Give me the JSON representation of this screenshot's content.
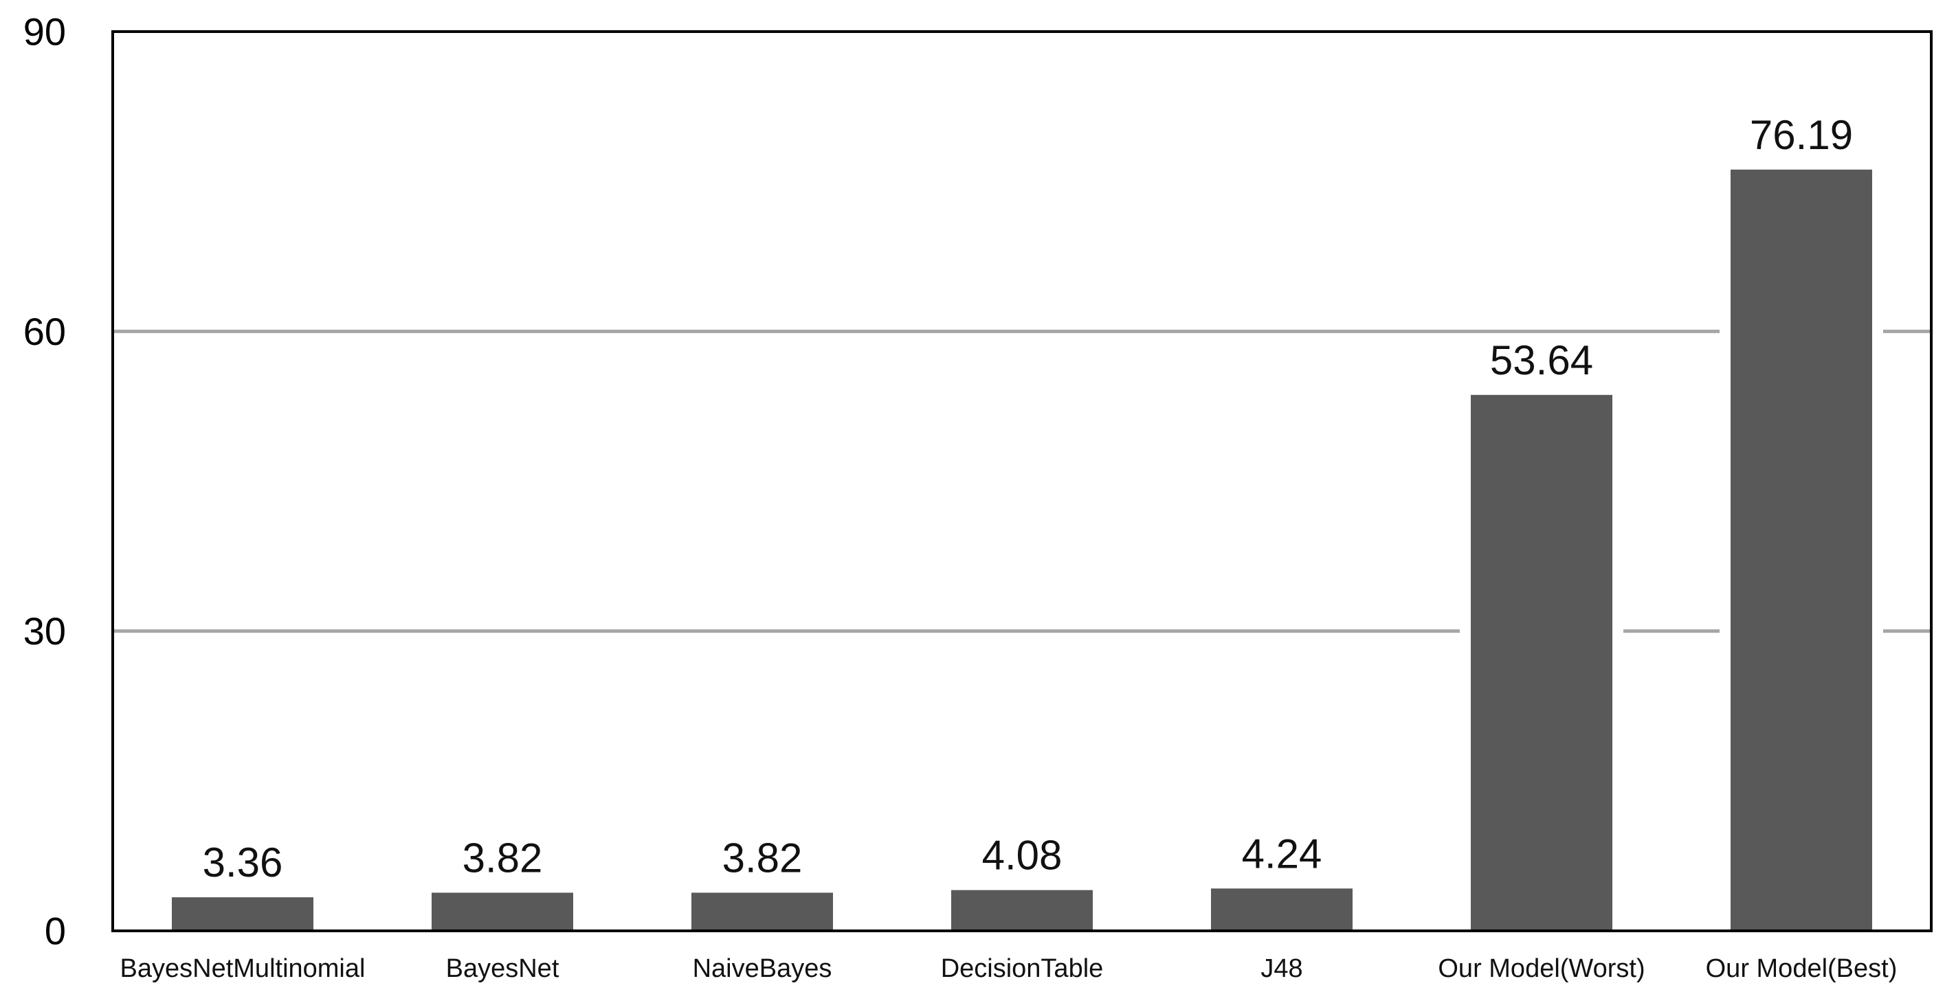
{
  "chart_data": {
    "type": "bar",
    "title": "",
    "xlabel": "",
    "ylabel": "",
    "categories": [
      "BayesNetMultinomial",
      "BayesNet",
      "NaiveBayes",
      "DecisionTable",
      "J48",
      "Our Model(Worst)",
      "Our Model(Best)"
    ],
    "values": [
      3.36,
      3.82,
      3.82,
      4.08,
      4.24,
      53.64,
      76.19
    ],
    "data_labels": [
      "3.36",
      "3.82",
      "3.82",
      "4.08",
      "4.24",
      "53.64",
      "76.19"
    ],
    "ylim": [
      0,
      90
    ],
    "yticks": [
      0,
      30,
      60,
      90
    ],
    "ytick_labels": [
      "0",
      "30",
      "60",
      "90"
    ],
    "grid": "horizontal",
    "legend": "none",
    "colors": {
      "bar": "#595959",
      "grid": "#a6a6a6",
      "frame": "#000000",
      "text": "#111111"
    }
  }
}
